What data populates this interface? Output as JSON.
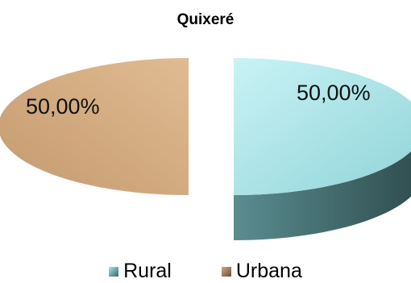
{
  "chart_data": {
    "type": "pie",
    "title": "Quixeré",
    "slices": [
      {
        "name": "Rural",
        "value": 50.0,
        "label": "50,00%",
        "color": "#a6e6ea",
        "side_color": "#3f6669"
      },
      {
        "name": "Urbana",
        "value": 50.0,
        "label": "50,00%",
        "color": "#cfa77f",
        "side_color": "#6b5138"
      }
    ],
    "legend": {
      "placement": "bottom",
      "entries": [
        "Rural",
        "Urbana"
      ]
    },
    "style": "3d-exploded"
  }
}
